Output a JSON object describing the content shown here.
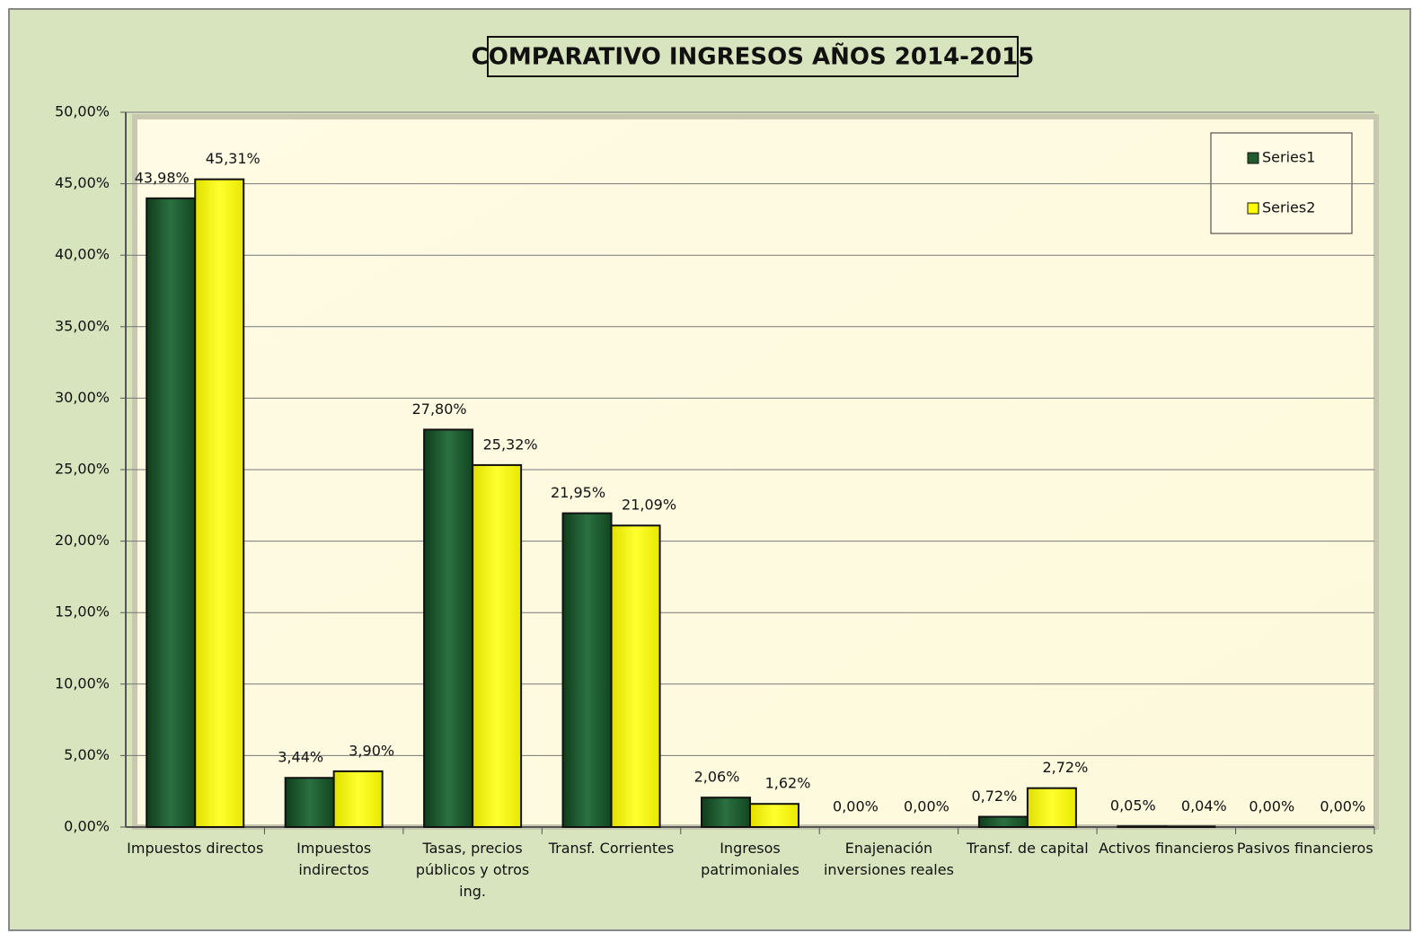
{
  "chart_data": {
    "type": "bar",
    "title": "COMPARATIVO INGRESOS AÑOS 2014-2015",
    "categories": [
      "Impuestos directos",
      "Impuestos indirectos",
      "Tasas, precios públicos y otros ing.",
      "Transf. Corrientes",
      "Ingresos patrimoniales",
      "Enajenación inversiones reales",
      "Transf. de capital",
      "Activos financieros",
      "Pasivos financieros"
    ],
    "series": [
      {
        "name": "Series1",
        "color": "#1f5b2c",
        "values": [
          43.98,
          3.44,
          27.8,
          21.95,
          2.06,
          0.0,
          0.72,
          0.05,
          0.0
        ],
        "value_labels": [
          "43,98%",
          "3,44%",
          "27,80%",
          "21,95%",
          "2,06%",
          "0,00%",
          "0,72%",
          "0,05%",
          "0,00%"
        ]
      },
      {
        "name": "Series2",
        "color": "#ffff00",
        "values": [
          45.31,
          3.9,
          25.32,
          21.09,
          1.62,
          0.0,
          2.72,
          0.04,
          0.0
        ],
        "value_labels": [
          "45,31%",
          "3,90%",
          "25,32%",
          "21,09%",
          "1,62%",
          "0,00%",
          "2,72%",
          "0,04%",
          "0,00%"
        ]
      }
    ],
    "ylim": [
      0,
      50
    ],
    "yticks": [
      {
        "value": 0,
        "label": "0,00%"
      },
      {
        "value": 5,
        "label": "5,00%"
      },
      {
        "value": 10,
        "label": "10,00%"
      },
      {
        "value": 15,
        "label": "15,00%"
      },
      {
        "value": 20,
        "label": "20,00%"
      },
      {
        "value": 25,
        "label": "25,00%"
      },
      {
        "value": 30,
        "label": "30,00%"
      },
      {
        "value": 35,
        "label": "35,00%"
      },
      {
        "value": 40,
        "label": "40,00%"
      },
      {
        "value": 45,
        "label": "45,00%"
      },
      {
        "value": 50,
        "label": "50,00%"
      }
    ],
    "grid": true,
    "legend": "top-right"
  }
}
